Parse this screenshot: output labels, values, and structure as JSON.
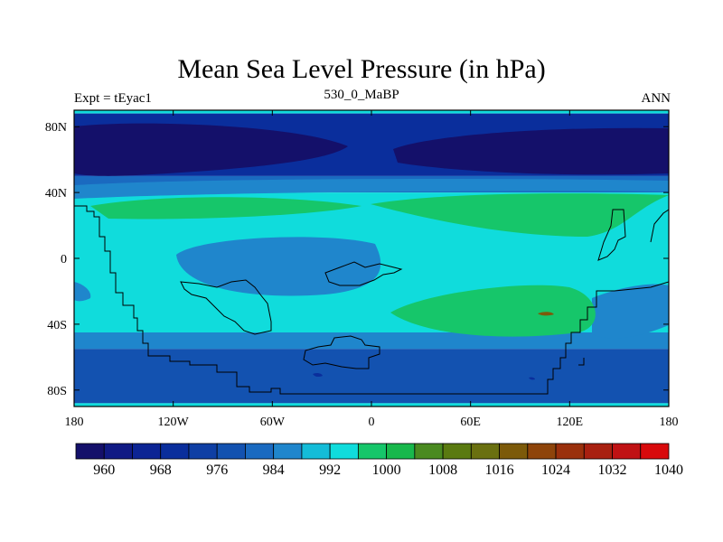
{
  "chart_data": {
    "type": "heatmap",
    "title": "Mean Sea Level Pressure (in hPa)",
    "left_string": "Expt = tEyac1",
    "center_string": "530_0_MaBP",
    "right_string": "ANN",
    "x_ticks": [
      "180",
      "120W",
      "60W",
      "0",
      "60E",
      "120E",
      "180"
    ],
    "y_ticks": [
      "80N",
      "40N",
      "0",
      "40S",
      "80S"
    ],
    "x_tick_lons": [
      -180,
      -120,
      -60,
      0,
      60,
      120,
      180
    ],
    "y_tick_lats": [
      80,
      40,
      0,
      -40,
      -80
    ],
    "lon_range": [
      -180,
      180
    ],
    "lat_range": [
      -90,
      90
    ],
    "colorbar_labels": [
      "960",
      "968",
      "976",
      "984",
      "992",
      "1000",
      "1008",
      "1016",
      "1024",
      "1032",
      "1040"
    ],
    "colorbar_colors": [
      "#14106a",
      "#101a84",
      "#0c2494",
      "#0a2e9c",
      "#0f3fa4",
      "#1352b0",
      "#1a6ac0",
      "#1f86cc",
      "#14bcd8",
      "#10dcdc",
      "#16c66a",
      "#18b84c",
      "#4a8a20",
      "#5a7a10",
      "#6a7010",
      "#7c5a0a",
      "#8e440a",
      "#9a300c",
      "#a82010",
      "#c01214",
      "#d80a0c"
    ],
    "field_bands": [
      {
        "lat_from": 90,
        "lat_to": 88,
        "value": "1000",
        "color": "#10dcdc"
      },
      {
        "lat_from": 88,
        "lat_to": 50,
        "value": "976",
        "color": "#0a2e9c"
      },
      {
        "lat_from": 50,
        "lat_to": 40,
        "value": "992",
        "color": "#1a6ac0"
      },
      {
        "lat_from": 40,
        "lat_to": -45,
        "value": "1000",
        "color": "#10dcdc"
      },
      {
        "lat_from": -45,
        "lat_to": -55,
        "value": "992",
        "color": "#1f86cc"
      },
      {
        "lat_from": -55,
        "lat_to": -88,
        "value": "984",
        "color": "#1352b0"
      },
      {
        "lat_from": -88,
        "lat_to": -90,
        "value": "1000",
        "color": "#10dcdc"
      }
    ]
  }
}
